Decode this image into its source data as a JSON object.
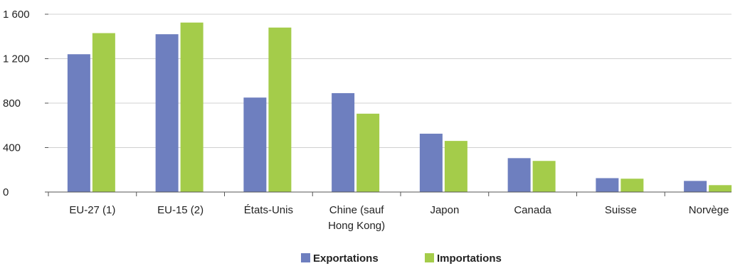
{
  "chart_data": {
    "type": "bar",
    "categories": [
      [
        "EU-27 (1)"
      ],
      [
        "EU-15 (2)"
      ],
      [
        "États-Unis"
      ],
      [
        "Chine (sauf",
        "Hong Kong)"
      ],
      [
        "Japon"
      ],
      [
        "Canada"
      ],
      [
        "Suisse"
      ],
      [
        "Norvège"
      ]
    ],
    "series": [
      {
        "name": "Exportations",
        "color": "#6e7fbf",
        "values": [
          1240,
          1420,
          850,
          890,
          525,
          305,
          125,
          100
        ]
      },
      {
        "name": "Importations",
        "color": "#a4cc4a",
        "values": [
          1430,
          1525,
          1480,
          705,
          460,
          280,
          120,
          62
        ]
      }
    ],
    "yticks": [
      0,
      400,
      800,
      1200,
      1600
    ],
    "ytick_labels": [
      "0",
      "400",
      "800",
      "1 200",
      "1 600"
    ],
    "ylim": [
      0,
      1600
    ],
    "grid": true,
    "legend_position": "bottom-center"
  }
}
